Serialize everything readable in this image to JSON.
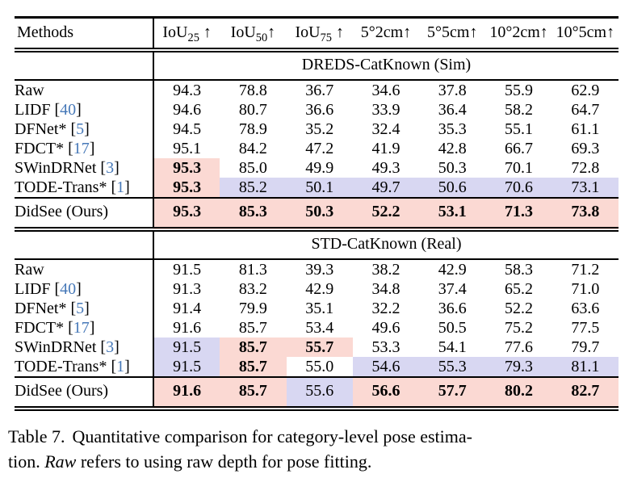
{
  "colors": {
    "best_highlight": "#fbd9d3",
    "second_highlight": "#d8d7f2",
    "citation": "#4678b8"
  },
  "table": {
    "header": {
      "methods_label": "Methods",
      "columns": [
        {
          "base": "IoU",
          "sub": "25",
          "tail": " ↑"
        },
        {
          "base": "IoU",
          "sub": "50",
          "tail": "↑"
        },
        {
          "base": "IoU",
          "sub": "75",
          "tail": " ↑"
        },
        {
          "base": "5°2cm",
          "tail": "↑"
        },
        {
          "base": "5°5cm",
          "tail": "↑"
        },
        {
          "base": "10°2cm",
          "tail": "↑"
        },
        {
          "base": "10°5cm",
          "tail": "↑"
        }
      ]
    },
    "sections": [
      {
        "title": "DREDS-CatKnown (Sim)",
        "rows": [
          {
            "method": "Raw",
            "values": [
              "94.3",
              "78.8",
              "36.7",
              "34.6",
              "37.8",
              "55.9",
              "62.9"
            ],
            "hl": [
              "",
              "",
              "",
              "",
              "",
              "",
              ""
            ],
            "bold": [
              0,
              0,
              0,
              0,
              0,
              0,
              0
            ]
          },
          {
            "method": "LIDF",
            "cite": "40",
            "values": [
              "94.6",
              "80.7",
              "36.6",
              "33.9",
              "36.4",
              "58.2",
              "64.7"
            ],
            "hl": [
              "",
              "",
              "",
              "",
              "",
              "",
              ""
            ],
            "bold": [
              0,
              0,
              0,
              0,
              0,
              0,
              0
            ]
          },
          {
            "method": "DFNet*",
            "cite": "5",
            "values": [
              "94.5",
              "78.9",
              "35.2",
              "32.4",
              "35.3",
              "55.1",
              "61.1"
            ],
            "hl": [
              "",
              "",
              "",
              "",
              "",
              "",
              ""
            ],
            "bold": [
              0,
              0,
              0,
              0,
              0,
              0,
              0
            ]
          },
          {
            "method": "FDCT*",
            "cite": "17",
            "values": [
              "95.1",
              "84.2",
              "47.2",
              "41.9",
              "42.8",
              "66.7",
              "69.3"
            ],
            "hl": [
              "",
              "",
              "",
              "",
              "",
              "",
              ""
            ],
            "bold": [
              0,
              0,
              0,
              0,
              0,
              0,
              0
            ]
          },
          {
            "method": "SWinDRNet",
            "cite": "3",
            "values": [
              "95.3",
              "85.0",
              "49.9",
              "49.3",
              "50.3",
              "70.1",
              "72.8"
            ],
            "hl": [
              "best",
              "",
              "",
              "",
              "",
              "",
              ""
            ],
            "bold": [
              1,
              0,
              0,
              0,
              0,
              0,
              0
            ]
          },
          {
            "method": "TODE-Trans*",
            "cite": "1",
            "values": [
              "95.3",
              "85.2",
              "50.1",
              "49.7",
              "50.6",
              "70.6",
              "73.1"
            ],
            "hl": [
              "best",
              "second",
              "second",
              "second",
              "second",
              "second",
              "second"
            ],
            "bold": [
              1,
              0,
              0,
              0,
              0,
              0,
              0
            ]
          }
        ],
        "ours": {
          "method": "DidSee (Ours)",
          "values": [
            "95.3",
            "85.3",
            "50.3",
            "52.2",
            "53.1",
            "71.3",
            "73.8"
          ],
          "hl": [
            "best",
            "best",
            "best",
            "best",
            "best",
            "best",
            "best"
          ],
          "bold": [
            1,
            1,
            1,
            1,
            1,
            1,
            1
          ]
        }
      },
      {
        "title": "STD-CatKnown (Real)",
        "rows": [
          {
            "method": "Raw",
            "values": [
              "91.5",
              "81.3",
              "39.3",
              "38.2",
              "42.9",
              "58.3",
              "71.2"
            ],
            "hl": [
              "",
              "",
              "",
              "",
              "",
              "",
              ""
            ],
            "bold": [
              0,
              0,
              0,
              0,
              0,
              0,
              0
            ]
          },
          {
            "method": "LIDF",
            "cite": "40",
            "values": [
              "91.3",
              "83.2",
              "42.9",
              "34.8",
              "37.4",
              "65.2",
              "71.0"
            ],
            "hl": [
              "",
              "",
              "",
              "",
              "",
              "",
              ""
            ],
            "bold": [
              0,
              0,
              0,
              0,
              0,
              0,
              0
            ]
          },
          {
            "method": "DFNet*",
            "cite": "5",
            "values": [
              "91.4",
              "79.9",
              "35.1",
              "32.2",
              "36.6",
              "52.2",
              "63.6"
            ],
            "hl": [
              "",
              "",
              "",
              "",
              "",
              "",
              ""
            ],
            "bold": [
              0,
              0,
              0,
              0,
              0,
              0,
              0
            ]
          },
          {
            "method": "FDCT*",
            "cite": "17",
            "values": [
              "91.6",
              "85.7",
              "53.4",
              "49.6",
              "50.5",
              "75.2",
              "77.5"
            ],
            "hl": [
              "",
              "",
              "",
              "",
              "",
              "",
              ""
            ],
            "bold": [
              0,
              0,
              0,
              0,
              0,
              0,
              0
            ]
          },
          {
            "method": "SWinDRNet",
            "cite": "3",
            "values": [
              "91.5",
              "85.7",
              "55.7",
              "53.3",
              "54.1",
              "77.6",
              "79.7"
            ],
            "hl": [
              "second",
              "best",
              "best",
              "",
              "",
              "",
              ""
            ],
            "bold": [
              0,
              1,
              1,
              0,
              0,
              0,
              0
            ]
          },
          {
            "method": "TODE-Trans*",
            "cite": "1",
            "values": [
              "91.5",
              "85.7",
              "55.0",
              "54.6",
              "55.3",
              "79.3",
              "81.1"
            ],
            "hl": [
              "second",
              "best",
              "",
              "second",
              "second",
              "second",
              "second"
            ],
            "bold": [
              0,
              1,
              0,
              0,
              0,
              0,
              0
            ]
          }
        ],
        "ours": {
          "method": "DidSee (Ours)",
          "values": [
            "91.6",
            "85.7",
            "55.6",
            "56.6",
            "57.7",
            "80.2",
            "82.7"
          ],
          "hl": [
            "best",
            "best",
            "second",
            "best",
            "best",
            "best",
            "best"
          ],
          "bold": [
            1,
            1,
            0,
            1,
            1,
            1,
            1
          ]
        }
      }
    ]
  },
  "caption": {
    "label": "Table 7.",
    "line1_rest": "Quantitative comparison for category-level pose estima-",
    "line2_before": "tion. ",
    "line2_italic": "Raw",
    "line2_after": " refers to using raw depth for pose fitting."
  }
}
